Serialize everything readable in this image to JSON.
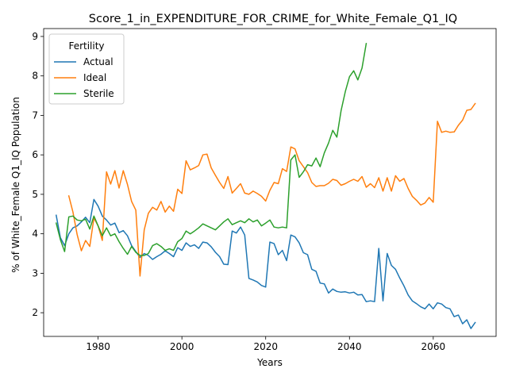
{
  "chart_data": {
    "type": "line",
    "title": "Score_1_in_EXPENDITURE_FOR_CRIME_for_White_Female_Q1_IQ",
    "xlabel": "Years",
    "ylabel": "% of White_Female Q1_IQ Population",
    "xlim": [
      1967,
      2075
    ],
    "ylim": [
      1.4,
      9.2
    ],
    "xticks": [
      1980,
      2000,
      2020,
      2040,
      2060
    ],
    "yticks": [
      2,
      3,
      4,
      5,
      6,
      7,
      8,
      9
    ],
    "grid": false,
    "legend": {
      "title": "Fertility",
      "placement": "top-left"
    },
    "series": [
      {
        "name": "Actual",
        "color": "#1f77b4",
        "x": [
          1970,
          1971,
          1972,
          1973,
          1974,
          1975,
          1976,
          1977,
          1978,
          1979,
          1980,
          1981,
          1982,
          1983,
          1984,
          1985,
          1986,
          1987,
          1988,
          1989,
          1990,
          1991,
          1992,
          1993,
          1994,
          1995,
          1996,
          1997,
          1998,
          1999,
          2000,
          2001,
          2002,
          2003,
          2004,
          2005,
          2006,
          2007,
          2008,
          2009,
          2010,
          2011,
          2012,
          2013,
          2014,
          2015,
          2016,
          2017,
          2018,
          2019,
          2020,
          2021,
          2022,
          2023,
          2024,
          2025,
          2026,
          2027,
          2028,
          2029,
          2030,
          2031,
          2032,
          2033,
          2034,
          2035,
          2036,
          2037,
          2038,
          2039,
          2040,
          2041,
          2042,
          2043,
          2044,
          2045,
          2046,
          2047,
          2048,
          2049,
          2050,
          2051,
          2052,
          2053,
          2054,
          2055,
          2056,
          2057,
          2058,
          2059,
          2060,
          2061,
          2062,
          2063,
          2064,
          2065,
          2066,
          2067,
          2068,
          2069,
          2070
        ],
        "values": [
          4.47,
          3.9,
          3.7,
          4.0,
          4.15,
          4.2,
          4.3,
          4.42,
          4.28,
          4.87,
          4.7,
          4.45,
          4.35,
          4.22,
          4.27,
          4.03,
          4.08,
          3.95,
          3.7,
          3.55,
          3.4,
          3.5,
          3.45,
          3.35,
          3.42,
          3.48,
          3.57,
          3.5,
          3.42,
          3.65,
          3.58,
          3.77,
          3.68,
          3.72,
          3.63,
          3.79,
          3.77,
          3.67,
          3.53,
          3.42,
          3.23,
          3.22,
          4.07,
          4.02,
          4.17,
          3.97,
          2.87,
          2.83,
          2.78,
          2.69,
          2.65,
          3.79,
          3.75,
          3.47,
          3.58,
          3.32,
          3.97,
          3.92,
          3.77,
          3.52,
          3.47,
          3.1,
          3.05,
          2.75,
          2.73,
          2.5,
          2.6,
          2.54,
          2.52,
          2.53,
          2.5,
          2.52,
          2.45,
          2.46,
          2.28,
          2.3,
          2.28,
          3.63,
          2.3,
          3.5,
          3.2,
          3.1,
          2.88,
          2.68,
          2.45,
          2.3,
          2.23,
          2.15,
          2.1,
          2.22,
          2.1,
          2.25,
          2.22,
          2.13,
          2.1,
          1.9,
          1.94,
          1.72,
          1.82,
          1.6,
          1.75
        ]
      },
      {
        "name": "Ideal",
        "color": "#ff7f0e",
        "x": [
          1973,
          1974,
          1975,
          1976,
          1977,
          1978,
          1979,
          1980,
          1981,
          1982,
          1983,
          1984,
          1985,
          1986,
          1987,
          1988,
          1989,
          1990,
          1991,
          1992,
          1993,
          1994,
          1995,
          1996,
          1997,
          1998,
          1999,
          2000,
          2001,
          2002,
          2003,
          2004,
          2005,
          2006,
          2007,
          2008,
          2009,
          2010,
          2011,
          2012,
          2013,
          2014,
          2015,
          2016,
          2017,
          2018,
          2019,
          2020,
          2021,
          2022,
          2023,
          2024,
          2025,
          2026,
          2027,
          2028,
          2029,
          2030,
          2031,
          2032,
          2033,
          2034,
          2035,
          2036,
          2037,
          2038,
          2039,
          2040,
          2041,
          2042,
          2043,
          2044,
          2045,
          2046,
          2047,
          2048,
          2049,
          2050,
          2051,
          2052,
          2053,
          2054,
          2055,
          2056,
          2057,
          2058,
          2059,
          2060,
          2061,
          2062,
          2063,
          2064,
          2065,
          2066,
          2067,
          2068,
          2069,
          2070
        ],
        "values": [
          4.96,
          4.55,
          3.98,
          3.57,
          3.83,
          3.68,
          4.4,
          4.2,
          3.83,
          5.57,
          5.26,
          5.6,
          5.16,
          5.6,
          5.25,
          4.82,
          4.6,
          2.93,
          4.1,
          4.52,
          4.67,
          4.6,
          4.82,
          4.55,
          4.7,
          4.57,
          5.13,
          5.02,
          5.85,
          5.62,
          5.67,
          5.73,
          6.0,
          6.02,
          5.67,
          5.48,
          5.3,
          5.15,
          5.45,
          5.03,
          5.15,
          5.27,
          5.03,
          5.0,
          5.08,
          5.02,
          4.95,
          4.83,
          5.1,
          5.3,
          5.27,
          5.65,
          5.58,
          6.2,
          6.15,
          5.85,
          5.7,
          5.55,
          5.3,
          5.2,
          5.22,
          5.22,
          5.28,
          5.38,
          5.35,
          5.23,
          5.27,
          5.33,
          5.38,
          5.33,
          5.45,
          5.18,
          5.27,
          5.17,
          5.42,
          5.08,
          5.42,
          5.08,
          5.47,
          5.33,
          5.4,
          5.15,
          4.95,
          4.85,
          4.73,
          4.78,
          4.92,
          4.8,
          6.85,
          6.57,
          6.6,
          6.57,
          6.58,
          6.75,
          6.88,
          7.13,
          7.15,
          7.3
        ]
      },
      {
        "name": "Sterile",
        "color": "#2ca02c",
        "x": [
          1970,
          1971,
          1972,
          1973,
          1974,
          1975,
          1976,
          1977,
          1978,
          1979,
          1980,
          1981,
          1982,
          1983,
          1984,
          1985,
          1986,
          1987,
          1988,
          1989,
          1990,
          1991,
          1992,
          1993,
          1994,
          1995,
          1996,
          1997,
          1998,
          1999,
          2000,
          2001,
          2002,
          2003,
          2004,
          2005,
          2006,
          2007,
          2008,
          2009,
          2010,
          2011,
          2012,
          2013,
          2014,
          2015,
          2016,
          2017,
          2018,
          2019,
          2020,
          2021,
          2022,
          2023,
          2024,
          2025,
          2026,
          2027,
          2028,
          2029,
          2030,
          2031,
          2032,
          2033,
          2034,
          2035,
          2036,
          2037,
          2038,
          2039,
          2040,
          2041,
          2042,
          2043,
          2044
        ],
        "values": [
          4.27,
          3.85,
          3.55,
          4.43,
          4.45,
          4.35,
          4.33,
          4.37,
          4.12,
          4.45,
          4.2,
          3.95,
          4.15,
          3.95,
          4.0,
          3.8,
          3.63,
          3.48,
          3.68,
          3.53,
          3.45,
          3.45,
          3.5,
          3.7,
          3.75,
          3.68,
          3.58,
          3.62,
          3.58,
          3.8,
          3.88,
          4.07,
          4.0,
          4.07,
          4.15,
          4.25,
          4.2,
          4.15,
          4.1,
          4.2,
          4.3,
          4.38,
          4.23,
          4.28,
          4.33,
          4.28,
          4.38,
          4.3,
          4.35,
          4.2,
          4.27,
          4.35,
          4.17,
          4.15,
          4.17,
          4.15,
          5.87,
          6.0,
          5.43,
          5.57,
          5.75,
          5.72,
          5.92,
          5.7,
          6.05,
          6.3,
          6.62,
          6.45,
          7.12,
          7.6,
          7.98,
          8.13,
          7.9,
          8.2,
          8.82
        ]
      }
    ]
  }
}
